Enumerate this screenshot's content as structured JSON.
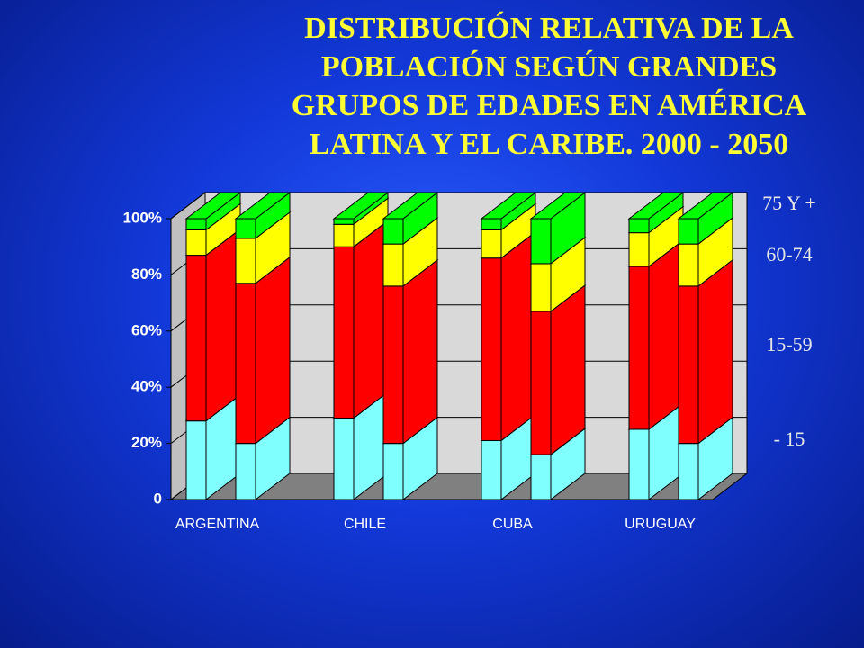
{
  "chart_data": {
    "type": "bar3d_stacked",
    "title": "DISTRIBUCIÓN RELATIVA DE LA POBLACIÓN SEGÚN GRANDES GRUPOS DE EDADES EN AMÉRICA LATINA Y EL CARIBE. 2000 - 2050",
    "categories": [
      "ARGENTINA",
      null,
      "CHILE",
      null,
      "CUBA",
      null,
      "URUGUAY",
      null
    ],
    "series": [
      {
        "name": "- 15",
        "color": "#80ffff",
        "values": [
          28,
          20,
          29,
          20,
          21,
          16,
          25,
          20
        ]
      },
      {
        "name": "15-59",
        "color": "#ff0000",
        "values": [
          59,
          57,
          61,
          56,
          65,
          51,
          58,
          56
        ]
      },
      {
        "name": "60-74",
        "color": "#ffff00",
        "values": [
          9,
          16,
          8,
          15,
          10,
          17,
          12,
          15
        ]
      },
      {
        "name": "75 Y +",
        "color": "#00ff00",
        "values": [
          4,
          7,
          2,
          9,
          4,
          16,
          5,
          9
        ]
      }
    ],
    "ylim": [
      0,
      100
    ],
    "yticks": [
      0,
      {
        "value": 20,
        "label": "20%"
      },
      {
        "value": 40,
        "label": "40%"
      },
      {
        "value": 60,
        "label": "60%"
      },
      {
        "value": 80,
        "label": "80%"
      },
      {
        "value": 100,
        "label": "100%"
      }
    ],
    "grid": true
  }
}
